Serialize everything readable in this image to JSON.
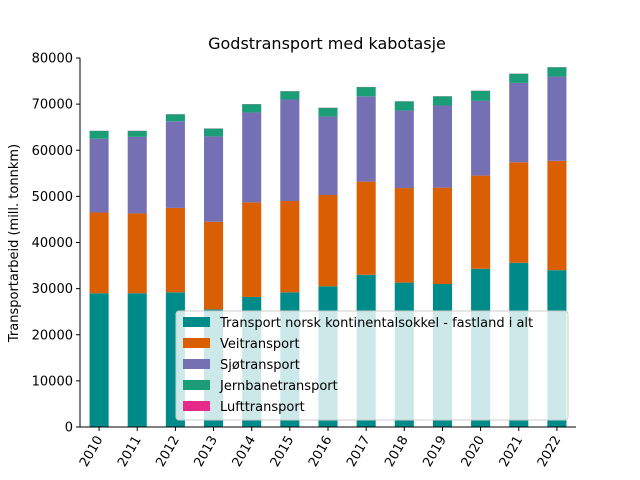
{
  "chart_data": {
    "type": "bar",
    "stacked": true,
    "title": "Godstransport med kabotasje",
    "xlabel": "",
    "ylabel": "Transportarbeid (mill. tonnkm)",
    "ylim": [
      0,
      80000
    ],
    "yticks": [
      0,
      10000,
      20000,
      30000,
      40000,
      50000,
      60000,
      70000,
      80000
    ],
    "grid": false,
    "legend_position": "lower-right",
    "categories": [
      "2010",
      "2011",
      "2012",
      "2013",
      "2014",
      "2015",
      "2016",
      "2017",
      "2018",
      "2019",
      "2020",
      "2021",
      "2022"
    ],
    "series": [
      {
        "name": "Transport norsk kontinentalsokkel  -  fastland i alt",
        "color": "#008b8b",
        "values": [
          29000,
          29000,
          29200,
          25500,
          28200,
          29200,
          30500,
          33000,
          31300,
          31000,
          34300,
          35600,
          34000
        ]
      },
      {
        "name": "Veitransport",
        "color": "#d95f02",
        "values": [
          17500,
          17300,
          18300,
          19000,
          20500,
          19800,
          19800,
          20200,
          20500,
          20900,
          20200,
          21800,
          23700
        ]
      },
      {
        "name": "Sjøtransport",
        "color": "#7570b3",
        "values": [
          16000,
          16600,
          18800,
          18500,
          19500,
          22000,
          17000,
          18500,
          16800,
          17800,
          16200,
          17200,
          18300
        ]
      },
      {
        "name": "Jernbanetransport",
        "color": "#1b9e77",
        "values": [
          1700,
          1300,
          1500,
          1700,
          1800,
          1800,
          1900,
          2000,
          2000,
          2000,
          2200,
          2000,
          2000
        ]
      },
      {
        "name": "Lufttransport",
        "color": "#e7298a",
        "values": [
          30,
          30,
          30,
          30,
          30,
          30,
          30,
          30,
          30,
          30,
          30,
          30,
          30
        ]
      }
    ]
  }
}
